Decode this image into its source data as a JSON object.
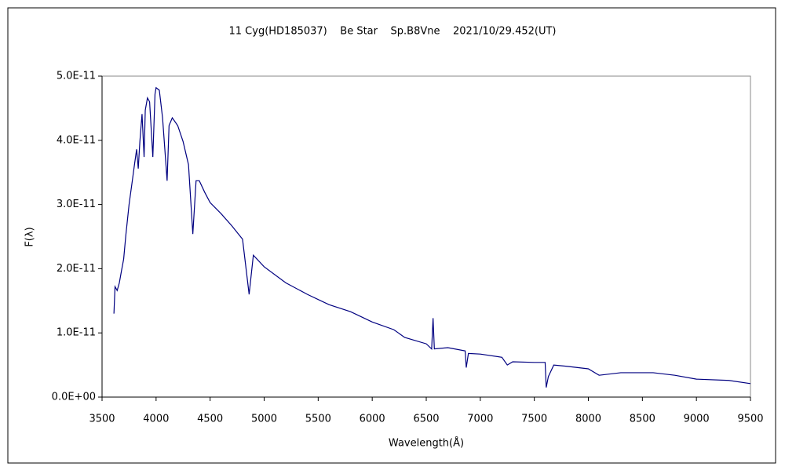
{
  "chart_data": {
    "type": "line",
    "title": "11 Cyg(HD185037)    Be Star    Sp.B8Vne    2021/10/29.452(UT)",
    "xlabel": "Wavelength(Å)",
    "ylabel": "F(λ)",
    "xlim": [
      3500,
      9500
    ],
    "xticks": [
      3500,
      4000,
      4500,
      5000,
      5500,
      6000,
      6500,
      7000,
      7500,
      8000,
      8500,
      9000,
      9500
    ],
    "ylim": [
      0,
      5e-11
    ],
    "yticks": [
      {
        "value": 0,
        "label": "0.0E+00"
      },
      {
        "value": 1e-11,
        "label": "1.0E-11"
      },
      {
        "value": 2e-11,
        "label": "2.0E-11"
      },
      {
        "value": 3e-11,
        "label": "3.0E-11"
      },
      {
        "value": 4e-11,
        "label": "4.0E-11"
      },
      {
        "value": 5e-11,
        "label": "5.0E-11"
      }
    ],
    "grid": false,
    "x": [
      3610,
      3620,
      3640,
      3660,
      3680,
      3700,
      3720,
      3750,
      3780,
      3800,
      3820,
      3835,
      3850,
      3870,
      3889,
      3900,
      3920,
      3940,
      3970,
      3990,
      4000,
      4030,
      4060,
      4102,
      4120,
      4150,
      4200,
      4250,
      4300,
      4340,
      4370,
      4400,
      4450,
      4500,
      4600,
      4700,
      4800,
      4861,
      4900,
      5000,
      5200,
      5400,
      5600,
      5800,
      6000,
      6200,
      6300,
      6500,
      6550,
      6563,
      6575,
      6700,
      6860,
      6870,
      6890,
      7000,
      7200,
      7250,
      7300,
      7500,
      7600,
      7610,
      7630,
      7680,
      7800,
      8000,
      8100,
      8300,
      8600,
      8800,
      9000,
      9300,
      9500
    ],
    "series": [
      {
        "color": "#000080",
        "values": [
          1.3e-11,
          1.72e-11,
          1.66e-11,
          1.78e-11,
          1.97e-11,
          2.15e-11,
          2.52e-11,
          3e-11,
          3.37e-11,
          3.62e-11,
          3.86e-11,
          3.56e-11,
          3.98e-11,
          4.41e-11,
          3.74e-11,
          4.47e-11,
          4.66e-11,
          4.6e-11,
          3.74e-11,
          4.72e-11,
          4.82e-11,
          4.78e-11,
          4.35e-11,
          3.37e-11,
          4.23e-11,
          4.35e-11,
          4.23e-11,
          3.98e-11,
          3.62e-11,
          2.54e-11,
          3.37e-11,
          3.37e-11,
          3.19e-11,
          3.03e-11,
          2.86e-11,
          2.67e-11,
          2.46e-11,
          1.6e-11,
          2.21e-11,
          2.03e-11,
          1.78e-11,
          1.6e-11,
          1.44e-11,
          1.33e-11,
          1.17e-11,
          1.05e-11,
          9.3e-12,
          8.3e-12,
          7.5e-12,
          1.23e-11,
          7.5e-12,
          7.7e-12,
          7.2e-12,
          4.6e-12,
          6.8e-12,
          6.7e-12,
          6.2e-12,
          5e-12,
          5.5e-12,
          5.4e-12,
          5.4e-12,
          1.5e-12,
          3.2e-12,
          5e-12,
          4.8e-12,
          4.4e-12,
          3.4e-12,
          3.8e-12,
          3.8e-12,
          3.4e-12,
          2.8e-12,
          2.6e-12,
          2.1e-12
        ]
      }
    ]
  }
}
